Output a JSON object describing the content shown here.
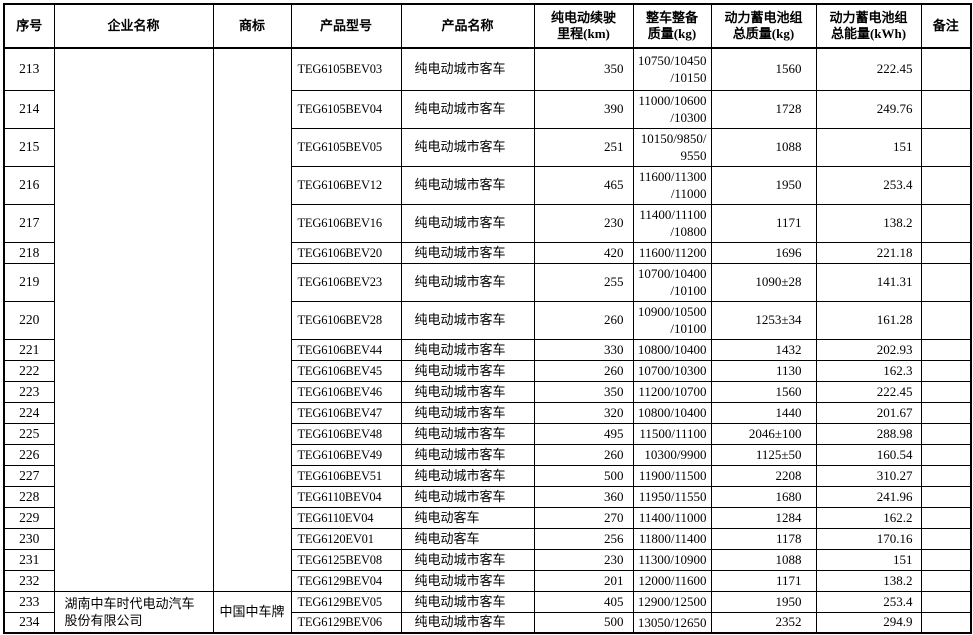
{
  "table": {
    "columns": [
      {
        "key": "index",
        "label": "序号"
      },
      {
        "key": "company",
        "label": "企业名称"
      },
      {
        "key": "brand",
        "label": "商标"
      },
      {
        "key": "model",
        "label": "产品型号"
      },
      {
        "key": "name",
        "label": "产品名称"
      },
      {
        "key": "range",
        "label": "纯电动续驶\n里程(km)"
      },
      {
        "key": "curb",
        "label": "整车整备\n质量(kg)"
      },
      {
        "key": "battery_mass",
        "label": "动力蓄电池组\n总质量(kg)"
      },
      {
        "key": "battery_energy",
        "label": "动力蓄电池组\n总能量(kWh)"
      },
      {
        "key": "remark",
        "label": "备注"
      }
    ],
    "company_groups": [
      {
        "start": 0,
        "count": 20,
        "company": "",
        "brand": ""
      },
      {
        "start": 20,
        "count": 2,
        "company": "湖南中车时代电动汽车股份有限公司",
        "brand": "中国中车牌"
      }
    ],
    "rows": [
      {
        "index": "213",
        "model": "TEG6105BEV03",
        "name": "纯电动城市客车",
        "range": "350",
        "curb": "10750/10450\n/10150",
        "battery_mass": "1560",
        "battery_energy": "222.45",
        "remark": ""
      },
      {
        "index": "214",
        "model": "TEG6105BEV04",
        "name": "纯电动城市客车",
        "range": "390",
        "curb": "11000/10600\n/10300",
        "battery_mass": "1728",
        "battery_energy": "249.76",
        "remark": ""
      },
      {
        "index": "215",
        "model": "TEG6105BEV05",
        "name": "纯电动城市客车",
        "range": "251",
        "curb": "10150/9850/\n9550",
        "battery_mass": "1088",
        "battery_energy": "151",
        "remark": ""
      },
      {
        "index": "216",
        "model": "TEG6106BEV12",
        "name": "纯电动城市客车",
        "range": "465",
        "curb": "11600/11300\n/11000",
        "battery_mass": "1950",
        "battery_energy": "253.4",
        "remark": ""
      },
      {
        "index": "217",
        "model": "TEG6106BEV16",
        "name": "纯电动城市客车",
        "range": "230",
        "curb": "11400/11100\n/10800",
        "battery_mass": "1171",
        "battery_energy": "138.2",
        "remark": ""
      },
      {
        "index": "218",
        "model": "TEG6106BEV20",
        "name": "纯电动城市客车",
        "range": "420",
        "curb": "11600/11200",
        "battery_mass": "1696",
        "battery_energy": "221.18",
        "remark": ""
      },
      {
        "index": "219",
        "model": "TEG6106BEV23",
        "name": "纯电动城市客车",
        "range": "255",
        "curb": "10700/10400\n/10100",
        "battery_mass": "1090±28",
        "battery_energy": "141.31",
        "remark": ""
      },
      {
        "index": "220",
        "model": "TEG6106BEV28",
        "name": "纯电动城市客车",
        "range": "260",
        "curb": "10900/10500\n/10100",
        "battery_mass": "1253±34",
        "battery_energy": "161.28",
        "remark": ""
      },
      {
        "index": "221",
        "model": "TEG6106BEV44",
        "name": "纯电动城市客车",
        "range": "330",
        "curb": "10800/10400",
        "battery_mass": "1432",
        "battery_energy": "202.93",
        "remark": ""
      },
      {
        "index": "222",
        "model": "TEG6106BEV45",
        "name": "纯电动城市客车",
        "range": "260",
        "curb": "10700/10300",
        "battery_mass": "1130",
        "battery_energy": "162.3",
        "remark": ""
      },
      {
        "index": "223",
        "model": "TEG6106BEV46",
        "name": "纯电动城市客车",
        "range": "350",
        "curb": "11200/10700",
        "battery_mass": "1560",
        "battery_energy": "222.45",
        "remark": ""
      },
      {
        "index": "224",
        "model": "TEG6106BEV47",
        "name": "纯电动城市客车",
        "range": "320",
        "curb": "10800/10400",
        "battery_mass": "1440",
        "battery_energy": "201.67",
        "remark": ""
      },
      {
        "index": "225",
        "model": "TEG6106BEV48",
        "name": "纯电动城市客车",
        "range": "495",
        "curb": "11500/11100",
        "battery_mass": "2046±100",
        "battery_energy": "288.98",
        "remark": ""
      },
      {
        "index": "226",
        "model": "TEG6106BEV49",
        "name": "纯电动城市客车",
        "range": "260",
        "curb": "10300/9900",
        "battery_mass": "1125±50",
        "battery_energy": "160.54",
        "remark": ""
      },
      {
        "index": "227",
        "model": "TEG6106BEV51",
        "name": "纯电动城市客车",
        "range": "500",
        "curb": "11900/11500",
        "battery_mass": "2208",
        "battery_energy": "310.27",
        "remark": ""
      },
      {
        "index": "228",
        "model": "TEG6110BEV04",
        "name": "纯电动城市客车",
        "range": "360",
        "curb": "11950/11550",
        "battery_mass": "1680",
        "battery_energy": "241.96",
        "remark": ""
      },
      {
        "index": "229",
        "model": "TEG6110EV04",
        "name": "纯电动客车",
        "range": "270",
        "curb": "11400/11000",
        "battery_mass": "1284",
        "battery_energy": "162.2",
        "remark": ""
      },
      {
        "index": "230",
        "model": "TEG6120EV01",
        "name": "纯电动客车",
        "range": "256",
        "curb": "11800/11400",
        "battery_mass": "1178",
        "battery_energy": "170.16",
        "remark": ""
      },
      {
        "index": "231",
        "model": "TEG6125BEV08",
        "name": "纯电动城市客车",
        "range": "230",
        "curb": "11300/10900",
        "battery_mass": "1088",
        "battery_energy": "151",
        "remark": ""
      },
      {
        "index": "232",
        "model": "TEG6129BEV04",
        "name": "纯电动城市客车",
        "range": "201",
        "curb": "12000/11600",
        "battery_mass": "1171",
        "battery_energy": "138.2",
        "remark": ""
      },
      {
        "index": "233",
        "model": "TEG6129BEV05",
        "name": "纯电动城市客车",
        "range": "405",
        "curb": "12900/12500",
        "battery_mass": "1950",
        "battery_energy": "253.4",
        "remark": ""
      },
      {
        "index": "234",
        "model": "TEG6129BEV06",
        "name": "纯电动城市客车",
        "range": "500",
        "curb": "13050/12650",
        "battery_mass": "2352",
        "battery_energy": "294.9",
        "remark": ""
      }
    ]
  }
}
